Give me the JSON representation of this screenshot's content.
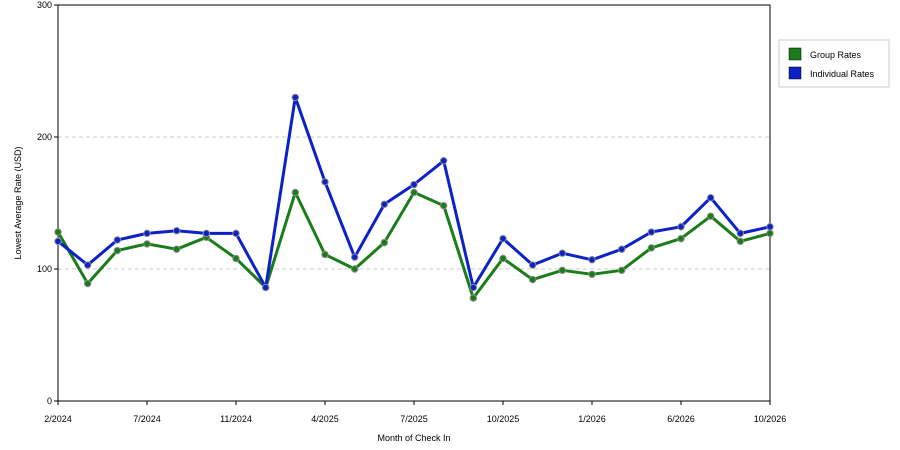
{
  "chart_data": {
    "type": "line",
    "title": "",
    "xlabel": "Month of Check In",
    "ylabel": "Lowest Average Rate (USD)",
    "ylim": [
      0,
      300
    ],
    "yticks": [
      0,
      100,
      200,
      300
    ],
    "x_tick_labels": [
      "2/2024",
      "7/2024",
      "11/2024",
      "4/2025",
      "7/2025",
      "10/2025",
      "1/2026",
      "6/2026",
      "10/2026"
    ],
    "grid": true,
    "legend_position": "top-right",
    "series": [
      {
        "name": "Group Rates",
        "color": "#1a7d1a",
        "values": [
          128,
          89,
          114,
          119,
          115,
          124,
          108,
          86,
          158,
          111,
          100,
          120,
          158,
          148,
          78,
          108,
          92,
          99,
          96,
          99,
          116,
          123,
          140,
          121,
          127
        ]
      },
      {
        "name": "Individual Rates",
        "color": "#0d21c8",
        "values": [
          121,
          103,
          122,
          127,
          129,
          127,
          127,
          86,
          230,
          166,
          109,
          149,
          164,
          182,
          86,
          123,
          103,
          112,
          107,
          115,
          128,
          132,
          154,
          127,
          132
        ]
      }
    ]
  }
}
